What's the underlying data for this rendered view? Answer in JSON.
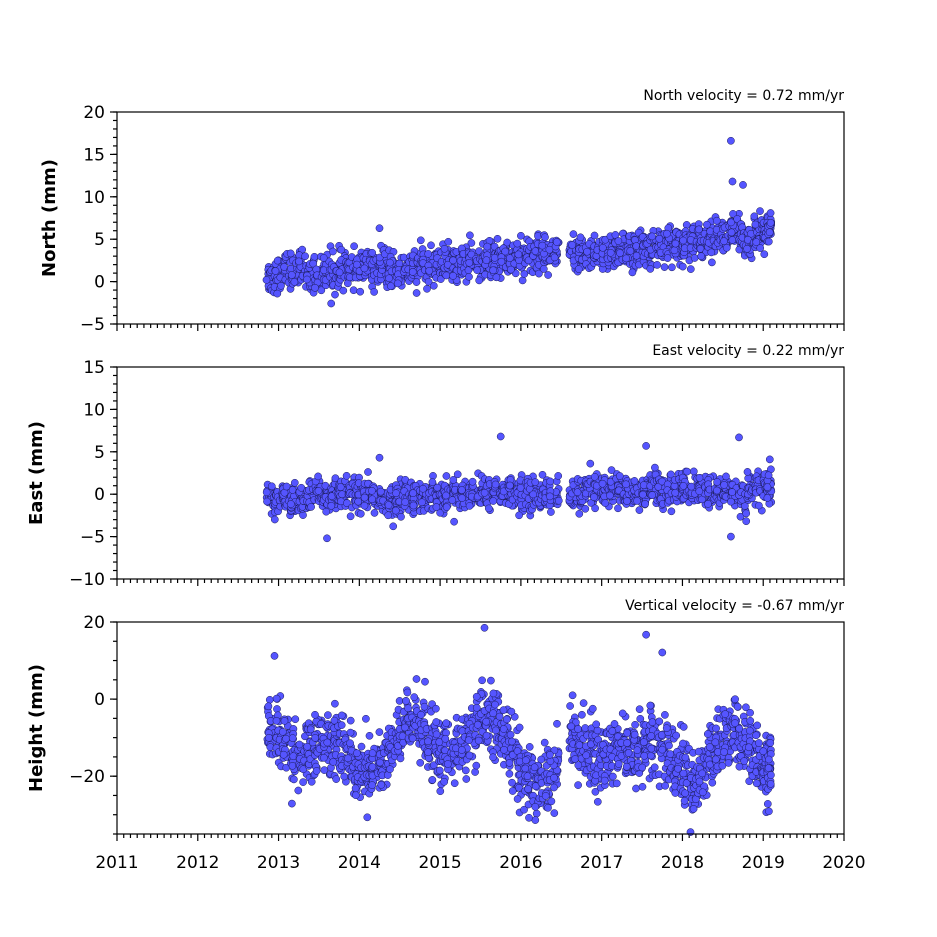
{
  "chart_data": [
    {
      "type": "scatter",
      "title": "North velocity = 0.72 mm/yr",
      "ylabel": "North (mm)",
      "xlim": [
        2011,
        2020
      ],
      "ylim": [
        -5,
        20
      ],
      "yticks": [
        "−5",
        "0",
        "5",
        "10",
        "15",
        "20"
      ],
      "marker_color": "#5555ff",
      "series": [
        {
          "x": [
            2012.85,
            2012.95,
            2013.05,
            2013.15,
            2013.25,
            2013.35,
            2013.45,
            2013.55,
            2013.65,
            2013.75,
            2013.85,
            2013.95,
            2014.05,
            2014.15,
            2014.25,
            2014.35,
            2014.45,
            2014.55,
            2014.65,
            2014.75,
            2014.85,
            2014.95,
            2015.05,
            2015.15,
            2015.25,
            2015.35,
            2015.45,
            2015.55,
            2015.65,
            2015.75,
            2015.85,
            2015.95,
            2016.05,
            2016.15,
            2016.25,
            2016.35,
            2016.6,
            2016.7,
            2016.8,
            2016.9,
            2017.0,
            2017.1,
            2017.2,
            2017.3,
            2017.4,
            2017.5,
            2017.6,
            2017.7,
            2017.8,
            2017.9,
            2018.0,
            2018.1,
            2018.2,
            2018.3,
            2018.4,
            2018.5,
            2018.6,
            2018.7,
            2018.8,
            2018.9,
            2019.0,
            2019.05
          ],
          "y": [
            0.5,
            1.0,
            1.4,
            1.2,
            1.6,
            1.0,
            0.8,
            1.3,
            0.9,
            1.5,
            1.4,
            1.7,
            1.8,
            1.2,
            1.9,
            1.3,
            0.9,
            1.6,
            1.5,
            1.8,
            1.9,
            2.0,
            2.2,
            2.0,
            2.4,
            2.3,
            2.1,
            2.6,
            2.5,
            2.9,
            2.7,
            3.0,
            3.1,
            3.2,
            3.4,
            3.5,
            2.8,
            3.0,
            3.2,
            3.3,
            3.5,
            3.6,
            3.4,
            3.7,
            3.9,
            4.0,
            3.8,
            4.1,
            4.3,
            4.2,
            4.6,
            4.8,
            5.0,
            5.2,
            5.3,
            4.9,
            6.0,
            5.4,
            5.1,
            5.6,
            5.7,
            5.9
          ]
        }
      ],
      "outliers": {
        "x": [
          2018.6,
          2018.62,
          2018.75,
          2014.25,
          2016.0,
          2016.65
        ],
        "y": [
          16.6,
          11.8,
          11.4,
          6.3,
          5.4,
          5.6
        ]
      }
    },
    {
      "type": "scatter",
      "title": "East velocity = 0.22 mm/yr",
      "ylabel": "East (mm)",
      "xlim": [
        2011,
        2020
      ],
      "ylim": [
        -10,
        15
      ],
      "yticks": [
        "−10",
        "−5",
        "0",
        "5",
        "10",
        "15"
      ],
      "marker_color": "#5555ff",
      "series": [
        {
          "x": [
            2012.85,
            2012.95,
            2013.05,
            2013.15,
            2013.25,
            2013.35,
            2013.45,
            2013.55,
            2013.65,
            2013.75,
            2013.85,
            2013.95,
            2014.05,
            2014.15,
            2014.25,
            2014.35,
            2014.45,
            2014.55,
            2014.65,
            2014.75,
            2014.85,
            2014.95,
            2015.05,
            2015.15,
            2015.25,
            2015.35,
            2015.45,
            2015.55,
            2015.65,
            2015.75,
            2015.85,
            2015.95,
            2016.05,
            2016.15,
            2016.25,
            2016.35,
            2016.6,
            2016.7,
            2016.8,
            2016.9,
            2017.0,
            2017.1,
            2017.2,
            2017.3,
            2017.4,
            2017.5,
            2017.6,
            2017.7,
            2017.8,
            2017.9,
            2018.0,
            2018.1,
            2018.2,
            2018.3,
            2018.4,
            2018.5,
            2018.6,
            2018.7,
            2018.8,
            2018.9,
            2019.0,
            2019.05
          ],
          "y": [
            -0.5,
            -0.8,
            -0.4,
            -0.9,
            -0.6,
            -0.2,
            0.2,
            -0.5,
            -0.3,
            -0.1,
            0.1,
            -0.4,
            -0.2,
            -0.3,
            -0.6,
            -0.8,
            -0.5,
            -0.2,
            0.0,
            -0.3,
            -0.1,
            0.1,
            0.0,
            -0.2,
            0.1,
            0.3,
            0.0,
            0.2,
            0.1,
            0.3,
            0.0,
            -0.1,
            0.2,
            0.0,
            0.1,
            -0.2,
            -0.3,
            0.2,
            0.4,
            0.6,
            0.5,
            0.8,
            0.3,
            0.4,
            0.2,
            0.6,
            0.9,
            0.4,
            0.2,
            0.5,
            0.7,
            0.6,
            0.4,
            0.1,
            0.3,
            0.5,
            0.2,
            -0.4,
            0.6,
            0.8,
            0.9,
            0.7
          ]
        }
      ],
      "outliers": {
        "x": [
          2015.75,
          2017.55,
          2018.7,
          2014.25,
          2013.6,
          2018.6
        ],
        "y": [
          6.8,
          5.7,
          6.7,
          4.3,
          -5.2,
          -5.0
        ]
      }
    },
    {
      "type": "scatter",
      "title": "Vertical velocity = -0.67 mm/yr",
      "ylabel": "Height (mm)",
      "xlim": [
        2011,
        2020
      ],
      "ylim": [
        -35,
        20
      ],
      "yticks": [
        "−20",
        "0",
        "20"
      ],
      "ytick_values": [
        -20,
        0,
        20
      ],
      "marker_color": "#5555ff",
      "series": [
        {
          "x": [
            2012.85,
            2012.95,
            2013.05,
            2013.15,
            2013.25,
            2013.35,
            2013.45,
            2013.55,
            2013.65,
            2013.75,
            2013.85,
            2013.95,
            2014.05,
            2014.15,
            2014.25,
            2014.35,
            2014.45,
            2014.55,
            2014.65,
            2014.75,
            2014.85,
            2014.95,
            2015.05,
            2015.15,
            2015.25,
            2015.35,
            2015.45,
            2015.55,
            2015.65,
            2015.75,
            2015.85,
            2015.95,
            2016.05,
            2016.15,
            2016.25,
            2016.35,
            2016.6,
            2016.7,
            2016.8,
            2016.9,
            2017.0,
            2017.1,
            2017.2,
            2017.3,
            2017.4,
            2017.5,
            2017.6,
            2017.7,
            2017.8,
            2017.9,
            2018.0,
            2018.1,
            2018.2,
            2018.3,
            2018.4,
            2018.5,
            2018.6,
            2018.7,
            2018.8,
            2018.9,
            2019.0,
            2019.05
          ],
          "y": [
            -8,
            -10,
            -12,
            -14,
            -15,
            -13,
            -11,
            -12,
            -10,
            -13,
            -16,
            -18,
            -19,
            -17,
            -16,
            -14,
            -10,
            -6,
            -5,
            -8,
            -12,
            -14,
            -15,
            -13,
            -11,
            -9,
            -6,
            -5,
            -7,
            -10,
            -14,
            -18,
            -20,
            -22,
            -21,
            -18,
            -10,
            -12,
            -14,
            -16,
            -15,
            -13,
            -12,
            -14,
            -13,
            -12,
            -11,
            -13,
            -15,
            -17,
            -19,
            -22,
            -20,
            -15,
            -12,
            -10,
            -8,
            -11,
            -13,
            -15,
            -17,
            -18
          ]
        }
      ],
      "outliers": {
        "x": [
          2015.55,
          2017.55,
          2017.75,
          2012.95,
          2018.1,
          2016.1
        ],
        "y": [
          18.5,
          16.7,
          12.1,
          11.2,
          -34.5,
          -30.8
        ]
      }
    }
  ],
  "x_axis": {
    "tick_labels": [
      "2011",
      "2012",
      "2013",
      "2014",
      "2015",
      "2016",
      "2017",
      "2018",
      "2019",
      "2020"
    ]
  }
}
